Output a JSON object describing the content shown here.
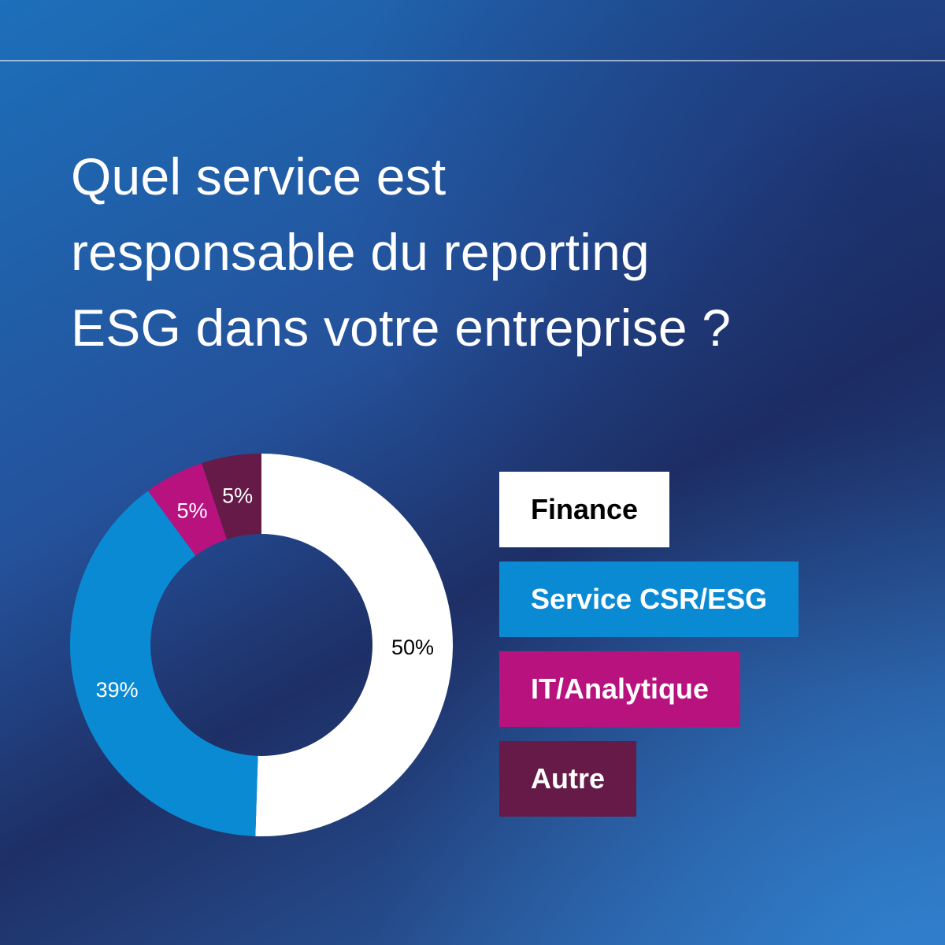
{
  "question": {
    "lines": [
      "Quel service est",
      "responsable du reporting",
      "ESG dans votre entreprise ?"
    ]
  },
  "chart_data": {
    "type": "pie",
    "style": "donut",
    "categories": [
      "Finance",
      "Service CSR/ESG",
      "IT/Analytique",
      "Autre"
    ],
    "values": [
      50,
      39,
      5,
      5
    ],
    "value_labels": [
      "50%",
      "39%",
      "5%",
      "5%"
    ],
    "colors": [
      "#ffffff",
      "#0b8ad4",
      "#b8127f",
      "#651a47"
    ],
    "label_colors": [
      "#000000",
      "#ffffff",
      "#ffffff",
      "#ffffff"
    ],
    "legend": {
      "placement": "right",
      "items": [
        {
          "label": "Finance",
          "color": "#ffffff",
          "text_color": "#000000"
        },
        {
          "label": "Service CSR/ESG",
          "color": "#0b8ad4",
          "text_color": "#ffffff"
        },
        {
          "label": "IT/Analytique",
          "color": "#b8127f",
          "text_color": "#ffffff"
        },
        {
          "label": "Autre",
          "color": "#651a47",
          "text_color": "#ffffff"
        }
      ]
    }
  }
}
